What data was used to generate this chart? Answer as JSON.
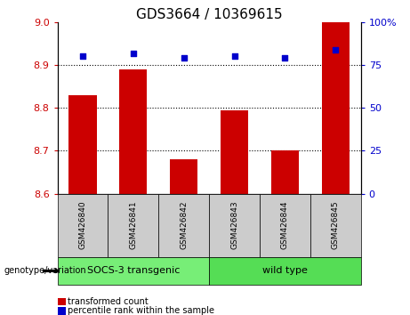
{
  "title": "GDS3664 / 10369615",
  "samples": [
    "GSM426840",
    "GSM426841",
    "GSM426842",
    "GSM426843",
    "GSM426844",
    "GSM426845"
  ],
  "bar_values": [
    8.83,
    8.89,
    8.68,
    8.795,
    8.702,
    9.0
  ],
  "percentile_values": [
    80,
    82,
    79,
    80,
    79,
    84
  ],
  "bar_bottom": 8.6,
  "ylim_left": [
    8.6,
    9.0
  ],
  "ylim_right": [
    0,
    100
  ],
  "yticks_left": [
    8.6,
    8.7,
    8.8,
    8.9,
    9.0
  ],
  "yticks_right": [
    0,
    25,
    50,
    75,
    100
  ],
  "bar_color": "#cc0000",
  "dot_color": "#0000cc",
  "group1_label": "SOCS-3 transgenic",
  "group2_label": "wild type",
  "group1_color": "#77ee77",
  "group2_color": "#55dd55",
  "group_bg_color": "#cccccc",
  "legend_bar_label": "transformed count",
  "legend_dot_label": "percentile rank within the sample",
  "genotype_label": "genotype/variation",
  "title_fontsize": 11,
  "tick_fontsize": 8,
  "sample_fontsize": 6.5,
  "group_fontsize": 8
}
